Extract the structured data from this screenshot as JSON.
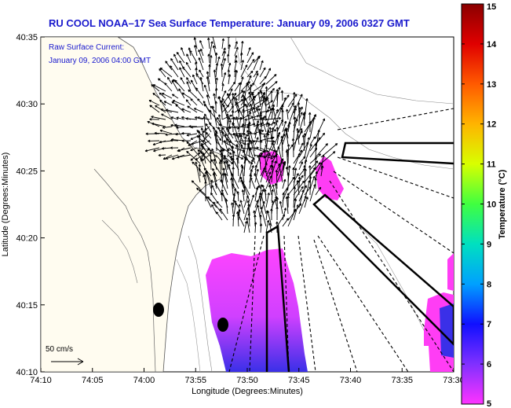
{
  "title": "RU COOL  NOAA–17  Sea Surface Temperature:  January 09, 2006 0327 GMT",
  "inset": {
    "line1": "Raw Surface Current:",
    "line2": "January 09, 2006 04:00 GMT"
  },
  "axes": {
    "xlabel": "Longitude (Degrees:Minutes)",
    "ylabel": "Latitude (Degrees:Minutes)",
    "xticks": [
      "74:10",
      "74:05",
      "74:00",
      "73:55",
      "73:50",
      "73:45",
      "73:40",
      "73:35",
      "73:30"
    ],
    "yticks": [
      "40:35",
      "40:30",
      "40:25",
      "40:20",
      "40:15",
      "40:10"
    ]
  },
  "scale": {
    "label": "50 cm/s"
  },
  "colorbar": {
    "label": "Temperature (°C)",
    "ticks": [
      "15",
      "14",
      "13",
      "12",
      "11",
      "10",
      "9",
      "8",
      "7",
      "6",
      "5"
    ],
    "colors": {
      "high": "#8b0000",
      "low": "#ff33ff"
    }
  },
  "colors": {
    "title": "#1a1acd",
    "land": "#fffcf0",
    "sst_patch": "#ff3df5",
    "arrow": "#000000"
  }
}
